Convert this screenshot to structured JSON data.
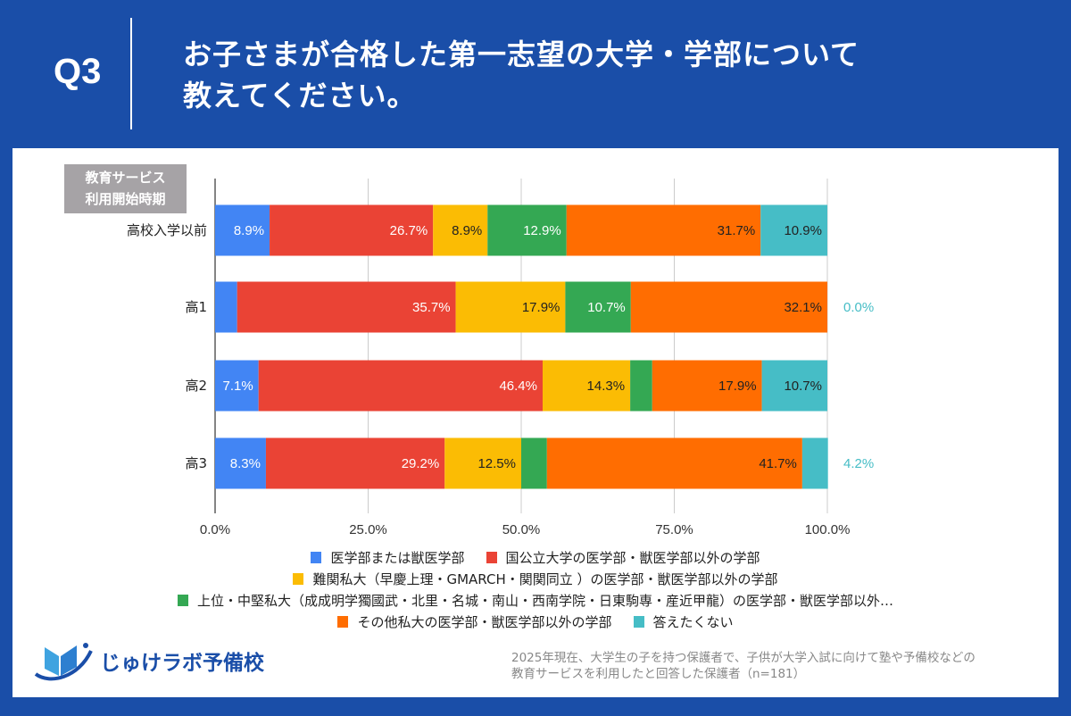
{
  "header": {
    "q_label": "Q3",
    "title_line1": "お子さまが合格した第一志望の大学・学部について",
    "title_line2": "教えてください。"
  },
  "axis_title": {
    "line1": "教育サービス",
    "line2": "利用開始時期"
  },
  "chart_data": {
    "type": "bar",
    "orientation": "horizontal",
    "stacked": true,
    "categories": [
      "高校入学以前",
      "高1",
      "高2",
      "高3"
    ],
    "xlim": [
      0,
      100
    ],
    "x_ticks": [
      "0.0%",
      "25.0%",
      "50.0%",
      "75.0%",
      "100.0%"
    ],
    "grid": true,
    "legend_position": "bottom",
    "series": [
      {
        "name": "医学部または獣医学部",
        "color": "#4285f4",
        "values": [
          8.9,
          3.6,
          7.1,
          8.3
        ]
      },
      {
        "name": "国公立大学の医学部・獣医学部以外の学部",
        "color": "#ea4335",
        "values": [
          26.7,
          35.7,
          46.4,
          29.2
        ]
      },
      {
        "name": "難関私大（早慶上理・GMARCH・関関同立 ）の医学部・獣医学部以外の学部",
        "color": "#fbbc04",
        "values": [
          8.9,
          17.9,
          14.3,
          12.5
        ]
      },
      {
        "name": "上位・中堅私大（成成明学獨國武・北里・名城・南山・西南学院・日東駒専・産近甲龍）の医学部・獣医学部以外…",
        "color": "#34a853",
        "values": [
          12.9,
          10.7,
          3.6,
          4.2
        ]
      },
      {
        "name": "その他私大の医学部・獣医学部以外の学部",
        "color": "#ff6d01",
        "values": [
          31.7,
          32.1,
          17.9,
          41.7
        ]
      },
      {
        "name": "答えたくない",
        "color": "#46bdc6",
        "values": [
          10.9,
          0.0,
          10.7,
          4.2
        ]
      }
    ]
  },
  "note": {
    "line1": "2025年現在、大学生の子を持つ保護者で、子供が大学入試に向けて塾や予備校などの",
    "line2": "教育サービスを利用したと回答した保護者（n=181）"
  },
  "logo": {
    "text": "じゅけラボ予備校"
  }
}
